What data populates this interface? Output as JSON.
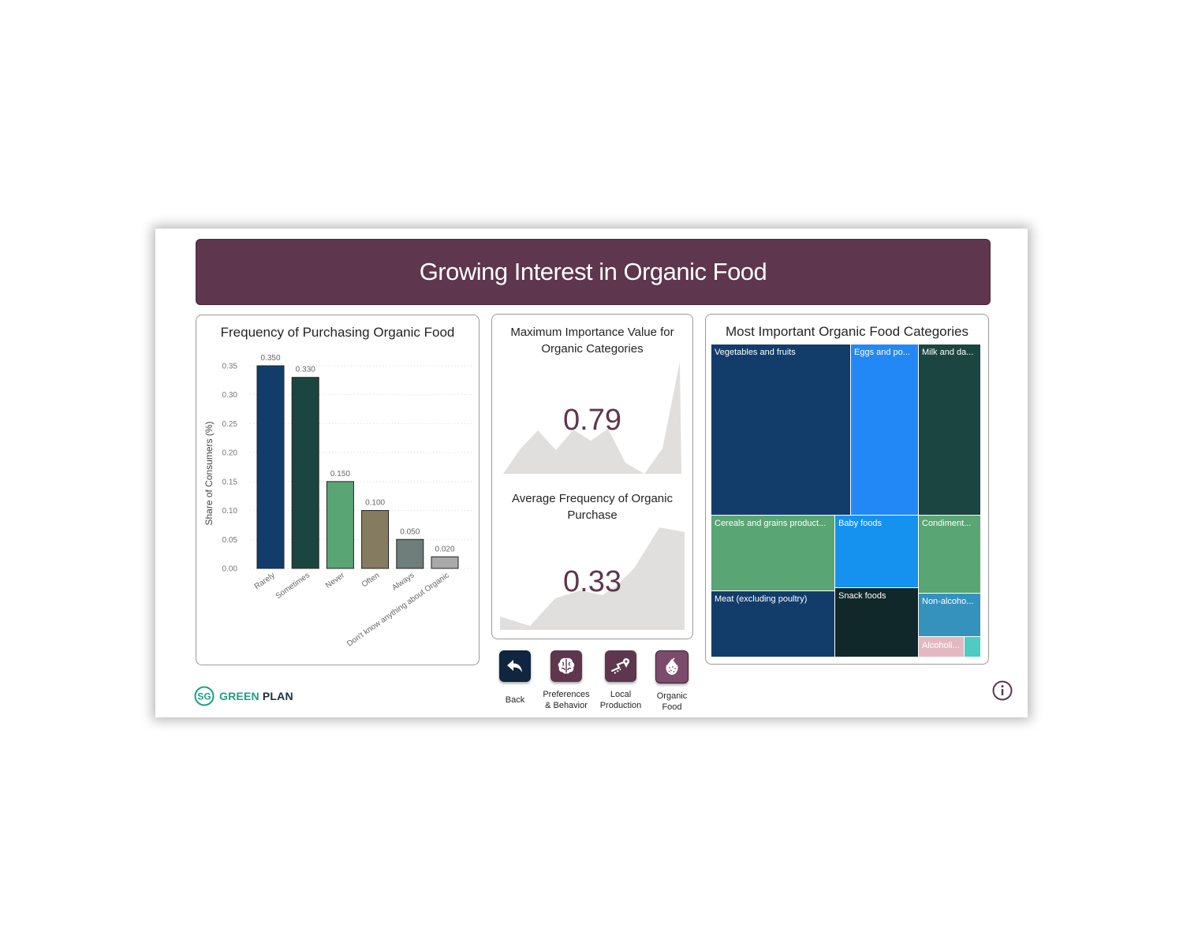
{
  "header": {
    "title": "Growing Interest in Organic Food"
  },
  "bar_chart": {
    "title": "Frequency of Purchasing Organic Food"
  },
  "kpis": [
    {
      "title": "Maximum Importance Value for Organic Categories",
      "value": "0.79"
    },
    {
      "title": "Average Frequency of Organic Purchase",
      "value": "0.33"
    }
  ],
  "treemap": {
    "title": "Most Important Organic Food Categories",
    "tiles": [
      {
        "label": "Vegetables and fruits",
        "color": "#123d6b"
      },
      {
        "label": "Eggs and po...",
        "color": "#2288f5"
      },
      {
        "label": "Milk and da...",
        "color": "#1b4540"
      },
      {
        "label": "Cereals and grains product...",
        "color": "#5aa574"
      },
      {
        "label": "Baby foods",
        "color": "#1591f0"
      },
      {
        "label": "Condiment...",
        "color": "#5aa574"
      },
      {
        "label": "Meat (excluding poultry)",
        "color": "#123d6b"
      },
      {
        "label": "Snack foods",
        "color": "#10282a"
      },
      {
        "label": "Non-alcoho...",
        "color": "#3592bd"
      },
      {
        "label": "Alcoholi...",
        "color": "#e3b9c1"
      },
      {
        "label": "",
        "color": "#4ecbc2"
      }
    ]
  },
  "nav": {
    "back": {
      "label": "Back",
      "color": "#0f2540",
      "icon": "back-arrow-icon"
    },
    "preferences": {
      "label_line1": "Preferences",
      "label_line2": "& Behavior",
      "color": "#5e364d",
      "icon": "brain-icon"
    },
    "local": {
      "label_line1": "Local",
      "label_line2": "Production",
      "color": "#5e364d",
      "icon": "route-icon"
    },
    "organic": {
      "label_line1": "Organic",
      "label_line2": "Food",
      "color": "#7b4b6c",
      "icon": "strawberry-icon"
    }
  },
  "logo": {
    "mark": "SG",
    "text_green": "GREEN",
    "text_plan": "PLAN",
    "color": "#1ba184"
  },
  "info": {
    "icon": "info-icon"
  },
  "chart_data": {
    "type": "bar",
    "title": "Frequency of Purchasing Organic Food",
    "xlabel": "",
    "ylabel": "Share of Consumers (%)",
    "categories": [
      "Rarely",
      "Sometimes",
      "Never",
      "Often",
      "Always",
      "Don't know anything about Organic"
    ],
    "values": [
      0.35,
      0.33,
      0.15,
      0.1,
      0.05,
      0.02
    ],
    "value_labels": [
      "0.350",
      "0.330",
      "0.150",
      "0.100",
      "0.050",
      "0.020"
    ],
    "colors": [
      "#123d6b",
      "#1b4540",
      "#5aa574",
      "#857b60",
      "#6f7d7b",
      "#a9a9a9"
    ],
    "yticks": [
      "0.00",
      "0.05",
      "0.10",
      "0.15",
      "0.20",
      "0.25",
      "0.30",
      "0.35"
    ],
    "ylim": [
      0,
      0.35
    ],
    "grid": true,
    "legend": "none"
  }
}
